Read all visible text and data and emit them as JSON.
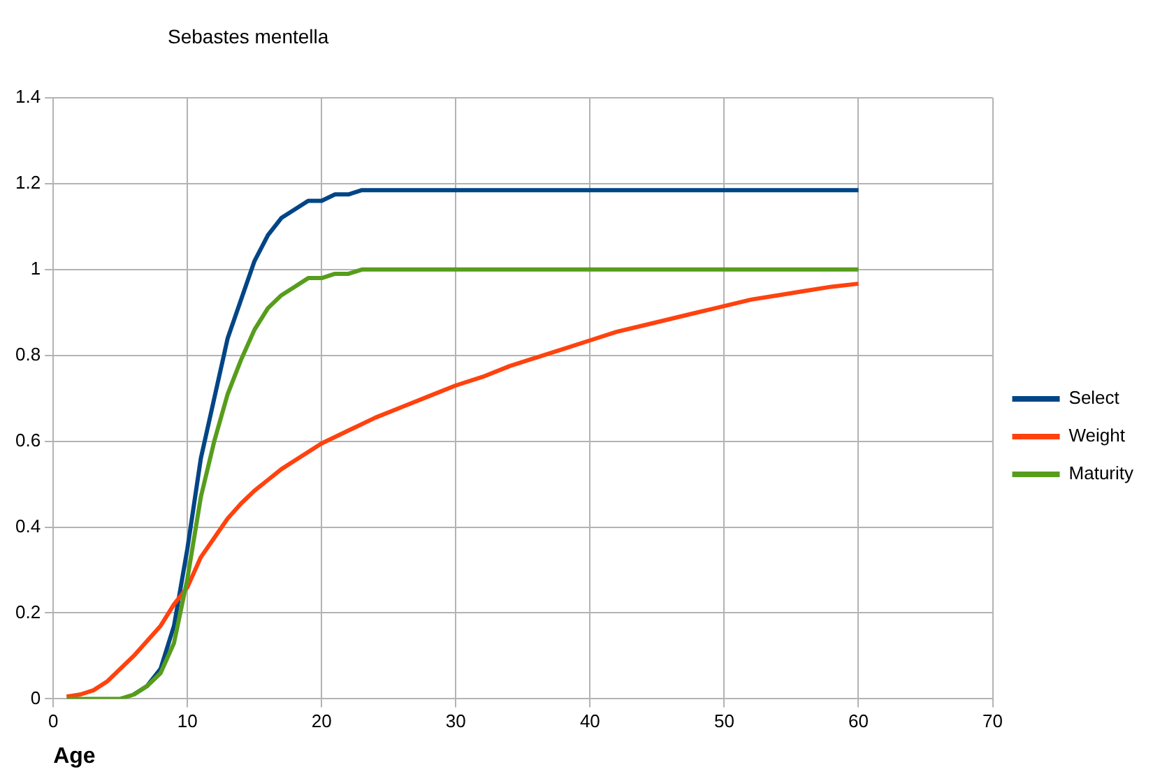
{
  "chart_data": {
    "type": "line",
    "title": "Sebastes mentella",
    "xlabel": "Age",
    "xlim": [
      0,
      70
    ],
    "xticks": [
      0,
      10,
      20,
      30,
      40,
      50,
      60,
      70
    ],
    "ylim": [
      0,
      1.4
    ],
    "yticks": [
      0,
      0.2,
      0.4,
      0.6,
      0.8,
      1,
      1.2,
      1.4
    ],
    "grid": true,
    "legend": "right",
    "marker": "none",
    "line_style": "solid",
    "series": [
      {
        "name": "Select",
        "color": "#004586",
        "x": [
          6,
          7,
          8,
          9,
          10,
          11,
          12,
          13,
          14,
          15,
          16,
          17,
          18,
          19,
          20,
          21,
          22,
          23,
          60
        ],
        "values": [
          0.01,
          0.03,
          0.07,
          0.17,
          0.35,
          0.56,
          0.7,
          0.84,
          0.93,
          1.02,
          1.08,
          1.12,
          1.14,
          1.16,
          1.16,
          1.175,
          1.175,
          1.185,
          1.185
        ]
      },
      {
        "name": "Weight",
        "color": "#ff420e",
        "x": [
          1,
          2,
          3,
          4,
          5,
          6,
          7,
          8,
          9,
          10,
          11,
          12,
          13,
          14,
          15,
          16,
          17,
          18,
          19,
          20,
          22,
          24,
          26,
          28,
          30,
          32,
          34,
          36,
          38,
          40,
          42,
          44,
          46,
          48,
          50,
          52,
          54,
          56,
          58,
          60
        ],
        "values": [
          0.005,
          0.01,
          0.02,
          0.04,
          0.07,
          0.1,
          0.135,
          0.17,
          0.22,
          0.26,
          0.33,
          0.375,
          0.42,
          0.455,
          0.485,
          0.51,
          0.535,
          0.555,
          0.575,
          0.595,
          0.625,
          0.655,
          0.68,
          0.705,
          0.73,
          0.75,
          0.775,
          0.795,
          0.815,
          0.835,
          0.855,
          0.87,
          0.885,
          0.9,
          0.915,
          0.93,
          0.94,
          0.95,
          0.96,
          0.967
        ]
      },
      {
        "name": "Maturity",
        "color": "#579d1c",
        "x": [
          1,
          2,
          3,
          4,
          5,
          6,
          7,
          8,
          9,
          10,
          11,
          12,
          13,
          14,
          15,
          16,
          17,
          18,
          19,
          20,
          21,
          22,
          23,
          60
        ],
        "values": [
          0,
          0,
          0,
          0,
          0,
          0.01,
          0.03,
          0.06,
          0.13,
          0.28,
          0.47,
          0.6,
          0.71,
          0.79,
          0.86,
          0.91,
          0.94,
          0.96,
          0.98,
          0.98,
          0.99,
          0.99,
          1,
          1
        ]
      }
    ]
  }
}
